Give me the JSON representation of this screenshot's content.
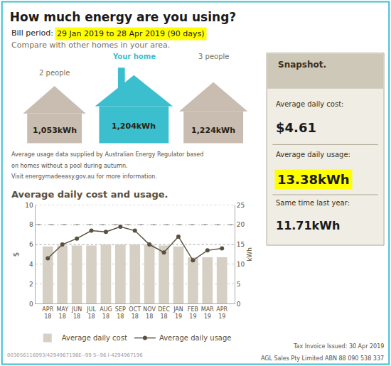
{
  "title": "How much energy are you using?",
  "bill_period": {
    "label": "Bill period:",
    "text": "29 Jan 2019 to 28 Apr 2019 (90 days)",
    "highlight": true
  },
  "compare_text": "Compare with other homes in your area.",
  "homes": [
    {
      "label": "2 people",
      "value": "1,053kWh",
      "color": "#c8bdb0",
      "highlight": false
    },
    {
      "label": "Your home",
      "value": "1,204kWh",
      "color": "#3bbfce",
      "highlight": true
    },
    {
      "label": "3 people",
      "value": "1,224kWh",
      "color": "#c8bdb0",
      "highlight": false
    }
  ],
  "footnote": [
    "Average usage data supplied by Australian Energy Regulator based",
    "on homes without a pool during autumn.",
    "Visit energymadeeasy.gov.au for more information."
  ],
  "chart_data": {
    "type": "bar",
    "title": "Average daily cost and usage.",
    "categories": [
      "APR\n18",
      "MAY\n18",
      "JUN\n18",
      "JUL\n18",
      "AUG\n18",
      "SEP\n18",
      "OCT\n18",
      "NOV\n18",
      "DEC\n18",
      "JAN\n19",
      "FEB\n19",
      "MAR\n19",
      "APR\n19"
    ],
    "series": [
      {
        "name": "Average daily cost",
        "type": "bar",
        "color": "#d6cfc4",
        "values": [
          5.8,
          5.9,
          5.9,
          5.9,
          6.0,
          6.0,
          6.0,
          6.0,
          5.9,
          5.8,
          4.7,
          4.7,
          4.7
        ]
      },
      {
        "name": "Average daily usage",
        "type": "line",
        "marker": "circle",
        "color": "#5a5040",
        "axis": "y2",
        "values": [
          11.5,
          15.0,
          16.5,
          18.5,
          18.2,
          19.5,
          18.5,
          15.0,
          13.0,
          17.0,
          11.0,
          13.5,
          14.0
        ]
      }
    ],
    "ylabel": "$",
    "y2label": "kWh",
    "ylim": [
      0,
      10
    ],
    "yticks": [
      0,
      2,
      4,
      6,
      8,
      10
    ],
    "y2lim": [
      0,
      25
    ],
    "y2ticks": [
      0,
      5,
      10,
      15,
      20,
      25
    ],
    "grid": true,
    "legend": "bottom",
    "reference_lines": [
      {
        "value": 20,
        "axis": "y2",
        "line_style": "dashed"
      },
      {
        "value": 25,
        "axis": "y2",
        "line_style": "dotted"
      },
      {
        "value": 15,
        "axis": "y2",
        "line_style": "dotted"
      }
    ]
  },
  "snapshot": {
    "title": "Snapshot.",
    "items": [
      {
        "label": "Average daily cost:",
        "value": "$4.61",
        "highlight": false
      },
      {
        "label": "Average daily usage:",
        "value": "13.38kWh",
        "highlight": true
      },
      {
        "label": "Same time last year:",
        "value": "11.71kWh",
        "highlight": false
      }
    ]
  },
  "footer": {
    "left": "003056116993/4294967196E--99 5--96 I-4294967196",
    "right": [
      "Tax Invoice Issued: 30 Apr 2019",
      "AGL Sales Pty Limited ABN 88 090 538 337"
    ]
  }
}
